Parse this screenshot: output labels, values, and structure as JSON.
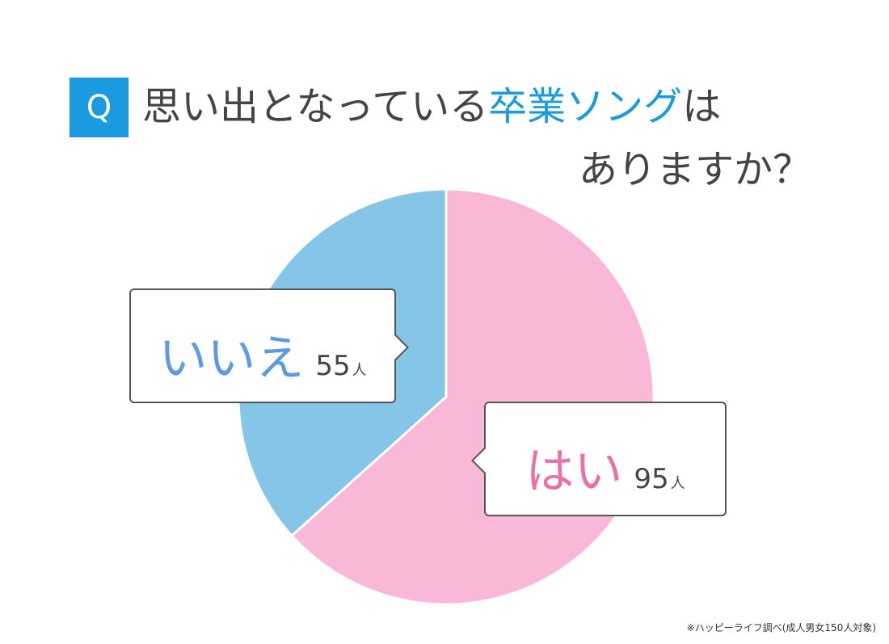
{
  "question": {
    "badge": "Q",
    "line1_prefix": "思い出となっている",
    "line1_accent": "卒業ソング",
    "line1_suffix": "は",
    "line2": "ありますか？"
  },
  "chart_data": {
    "type": "pie",
    "start_angle_deg": 0,
    "direction": "clockwise",
    "slices": [
      {
        "label": "はい",
        "value": 95,
        "unit": "人",
        "color": "#f9b8d7",
        "text_color": "#ec6fa6"
      },
      {
        "label": "いいえ",
        "value": 55,
        "unit": "人",
        "color": "#84c5e8",
        "text_color": "#5b9ae6"
      }
    ]
  },
  "colors": {
    "accent": "#1a9be0",
    "text": "#444444",
    "slice_border": "#ffffff"
  },
  "footnote": "※ハッピーライフ調べ(成人男女150人対象)"
}
